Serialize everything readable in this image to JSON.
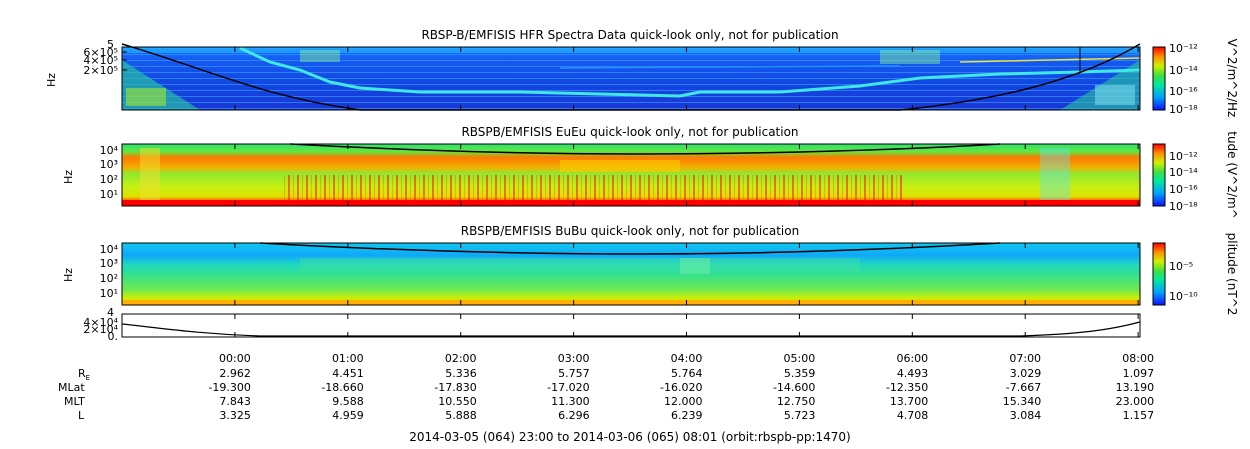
{
  "chart_data": [
    {
      "type": "heatmap",
      "title": "RBSP-B/EMFISIS  HFR Spectra Data quick-look only, not for publication",
      "ylabel": "Hz",
      "yticks": [
        "6×10⁵",
        "4×10⁵",
        "2×10⁵"
      ],
      "yticks_top": "5",
      "colorbar": {
        "label": "V^2/m^2/Hz",
        "ticks": [
          "10⁻¹²",
          "10⁻¹⁴",
          "10⁻¹⁶",
          "10⁻¹⁸"
        ],
        "colormap": "rainbow"
      }
    },
    {
      "type": "heatmap",
      "title": "RBSPB/EMFISIS  EuEu quick-look only, not for publication",
      "ylabel": "Hz",
      "yticks": [
        "10⁴",
        "10³",
        "10²",
        "10¹"
      ],
      "colorbar": {
        "label": "tude (V^2/m^",
        "ticks": [
          "10⁻¹²",
          "10⁻¹⁴",
          "10⁻¹⁶",
          "10⁻¹⁸"
        ],
        "colormap": "rainbow"
      }
    },
    {
      "type": "heatmap",
      "title": "RBSPB/EMFISIS  BuBu quick-look only, not for publication",
      "ylabel": "Hz",
      "yticks": [
        "10⁴",
        "10³",
        "10²",
        "10¹"
      ],
      "colorbar": {
        "label": "plitude (nT^2",
        "ticks": [
          "10⁻⁵",
          "10⁻¹⁰"
        ],
        "colormap": "rainbow"
      }
    },
    {
      "type": "line",
      "yticks": [
        "4×10⁴",
        "2×10⁴",
        "0."
      ],
      "yticks_top": "4"
    }
  ],
  "x_axis": {
    "ticks": [
      "00:00",
      "01:00",
      "02:00",
      "03:00",
      "04:00",
      "05:00",
      "06:00",
      "07:00",
      "08:00"
    ]
  },
  "ephemeris": [
    {
      "label": "R",
      "sub": "E",
      "values": [
        "2.962",
        "4.451",
        "5.336",
        "5.757",
        "5.764",
        "5.359",
        "4.493",
        "3.029",
        "1.097"
      ]
    },
    {
      "label": "MLat",
      "values": [
        "-19.300",
        "-18.660",
        "-17.830",
        "-17.020",
        "-16.020",
        "-14.600",
        "-12.350",
        "-7.667",
        "13.190"
      ]
    },
    {
      "label": "MLT",
      "values": [
        "7.843",
        "9.588",
        "10.550",
        "11.300",
        "12.000",
        "12.750",
        "13.700",
        "15.340",
        "23.000"
      ]
    },
    {
      "label": "L",
      "values": [
        "3.325",
        "4.959",
        "5.888",
        "6.296",
        "6.239",
        "5.723",
        "4.708",
        "3.084",
        "1.157"
      ]
    }
  ],
  "footer": "2014-03-05 (064) 23:00 to 2014-03-06 (065) 08:01 (orbit:rbspb-pp:1470)"
}
